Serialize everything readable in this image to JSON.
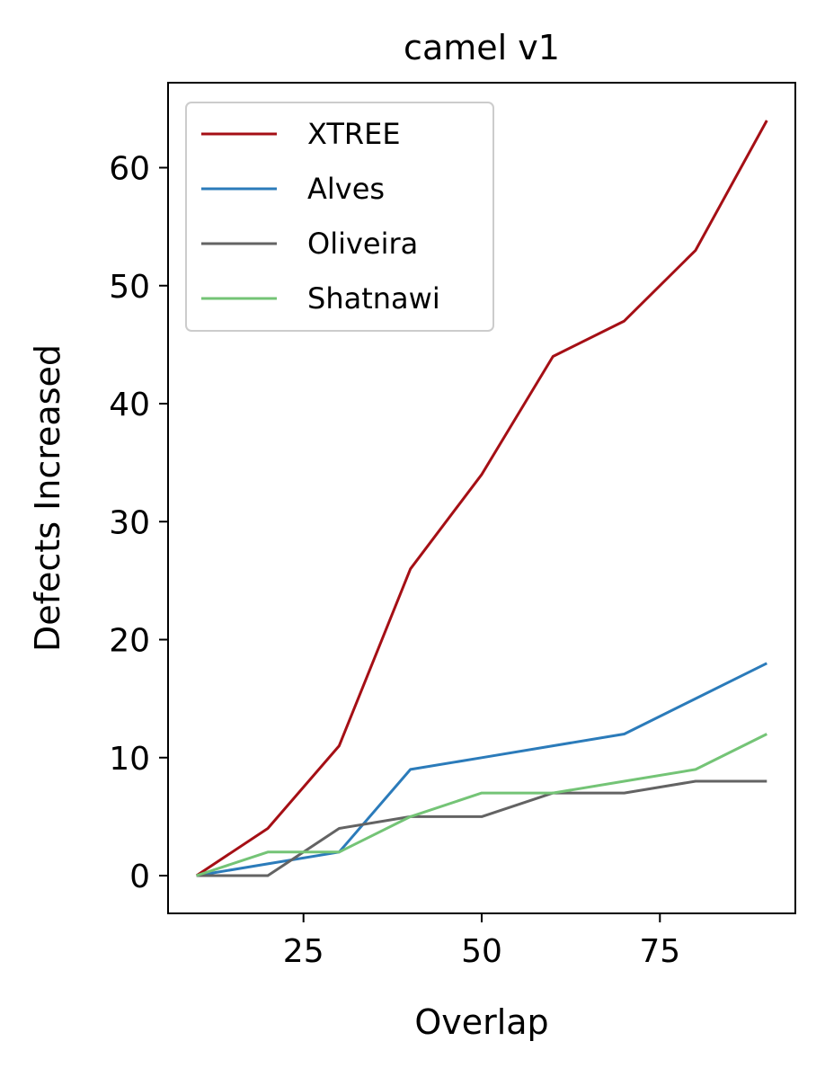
{
  "chart_data": {
    "type": "line",
    "title": "camel v1",
    "xlabel": "Overlap",
    "ylabel": "Defects Increased",
    "xlim": [
      6,
      94
    ],
    "ylim": [
      -3.2,
      67.2
    ],
    "xticks": [
      25,
      50,
      75
    ],
    "yticks": [
      0,
      10,
      20,
      30,
      40,
      50,
      60
    ],
    "x": [
      10,
      20,
      30,
      40,
      50,
      60,
      70,
      80,
      90
    ],
    "grid": false,
    "legend_position": "upper-left",
    "series": [
      {
        "name": "XTREE",
        "color": "#a50f15",
        "values": [
          0,
          4,
          11,
          26,
          34,
          44,
          47,
          53,
          64
        ]
      },
      {
        "name": "Alves",
        "color": "#2b7bba",
        "values": [
          0,
          1,
          2,
          9,
          10,
          11,
          12,
          15,
          18
        ]
      },
      {
        "name": "Oliveira",
        "color": "#636363",
        "values": [
          0,
          0,
          4,
          5,
          5,
          7,
          7,
          8,
          8
        ]
      },
      {
        "name": "Shatnawi",
        "color": "#74c476",
        "values": [
          0,
          2,
          2,
          5,
          7,
          7,
          8,
          9,
          12
        ]
      }
    ]
  }
}
